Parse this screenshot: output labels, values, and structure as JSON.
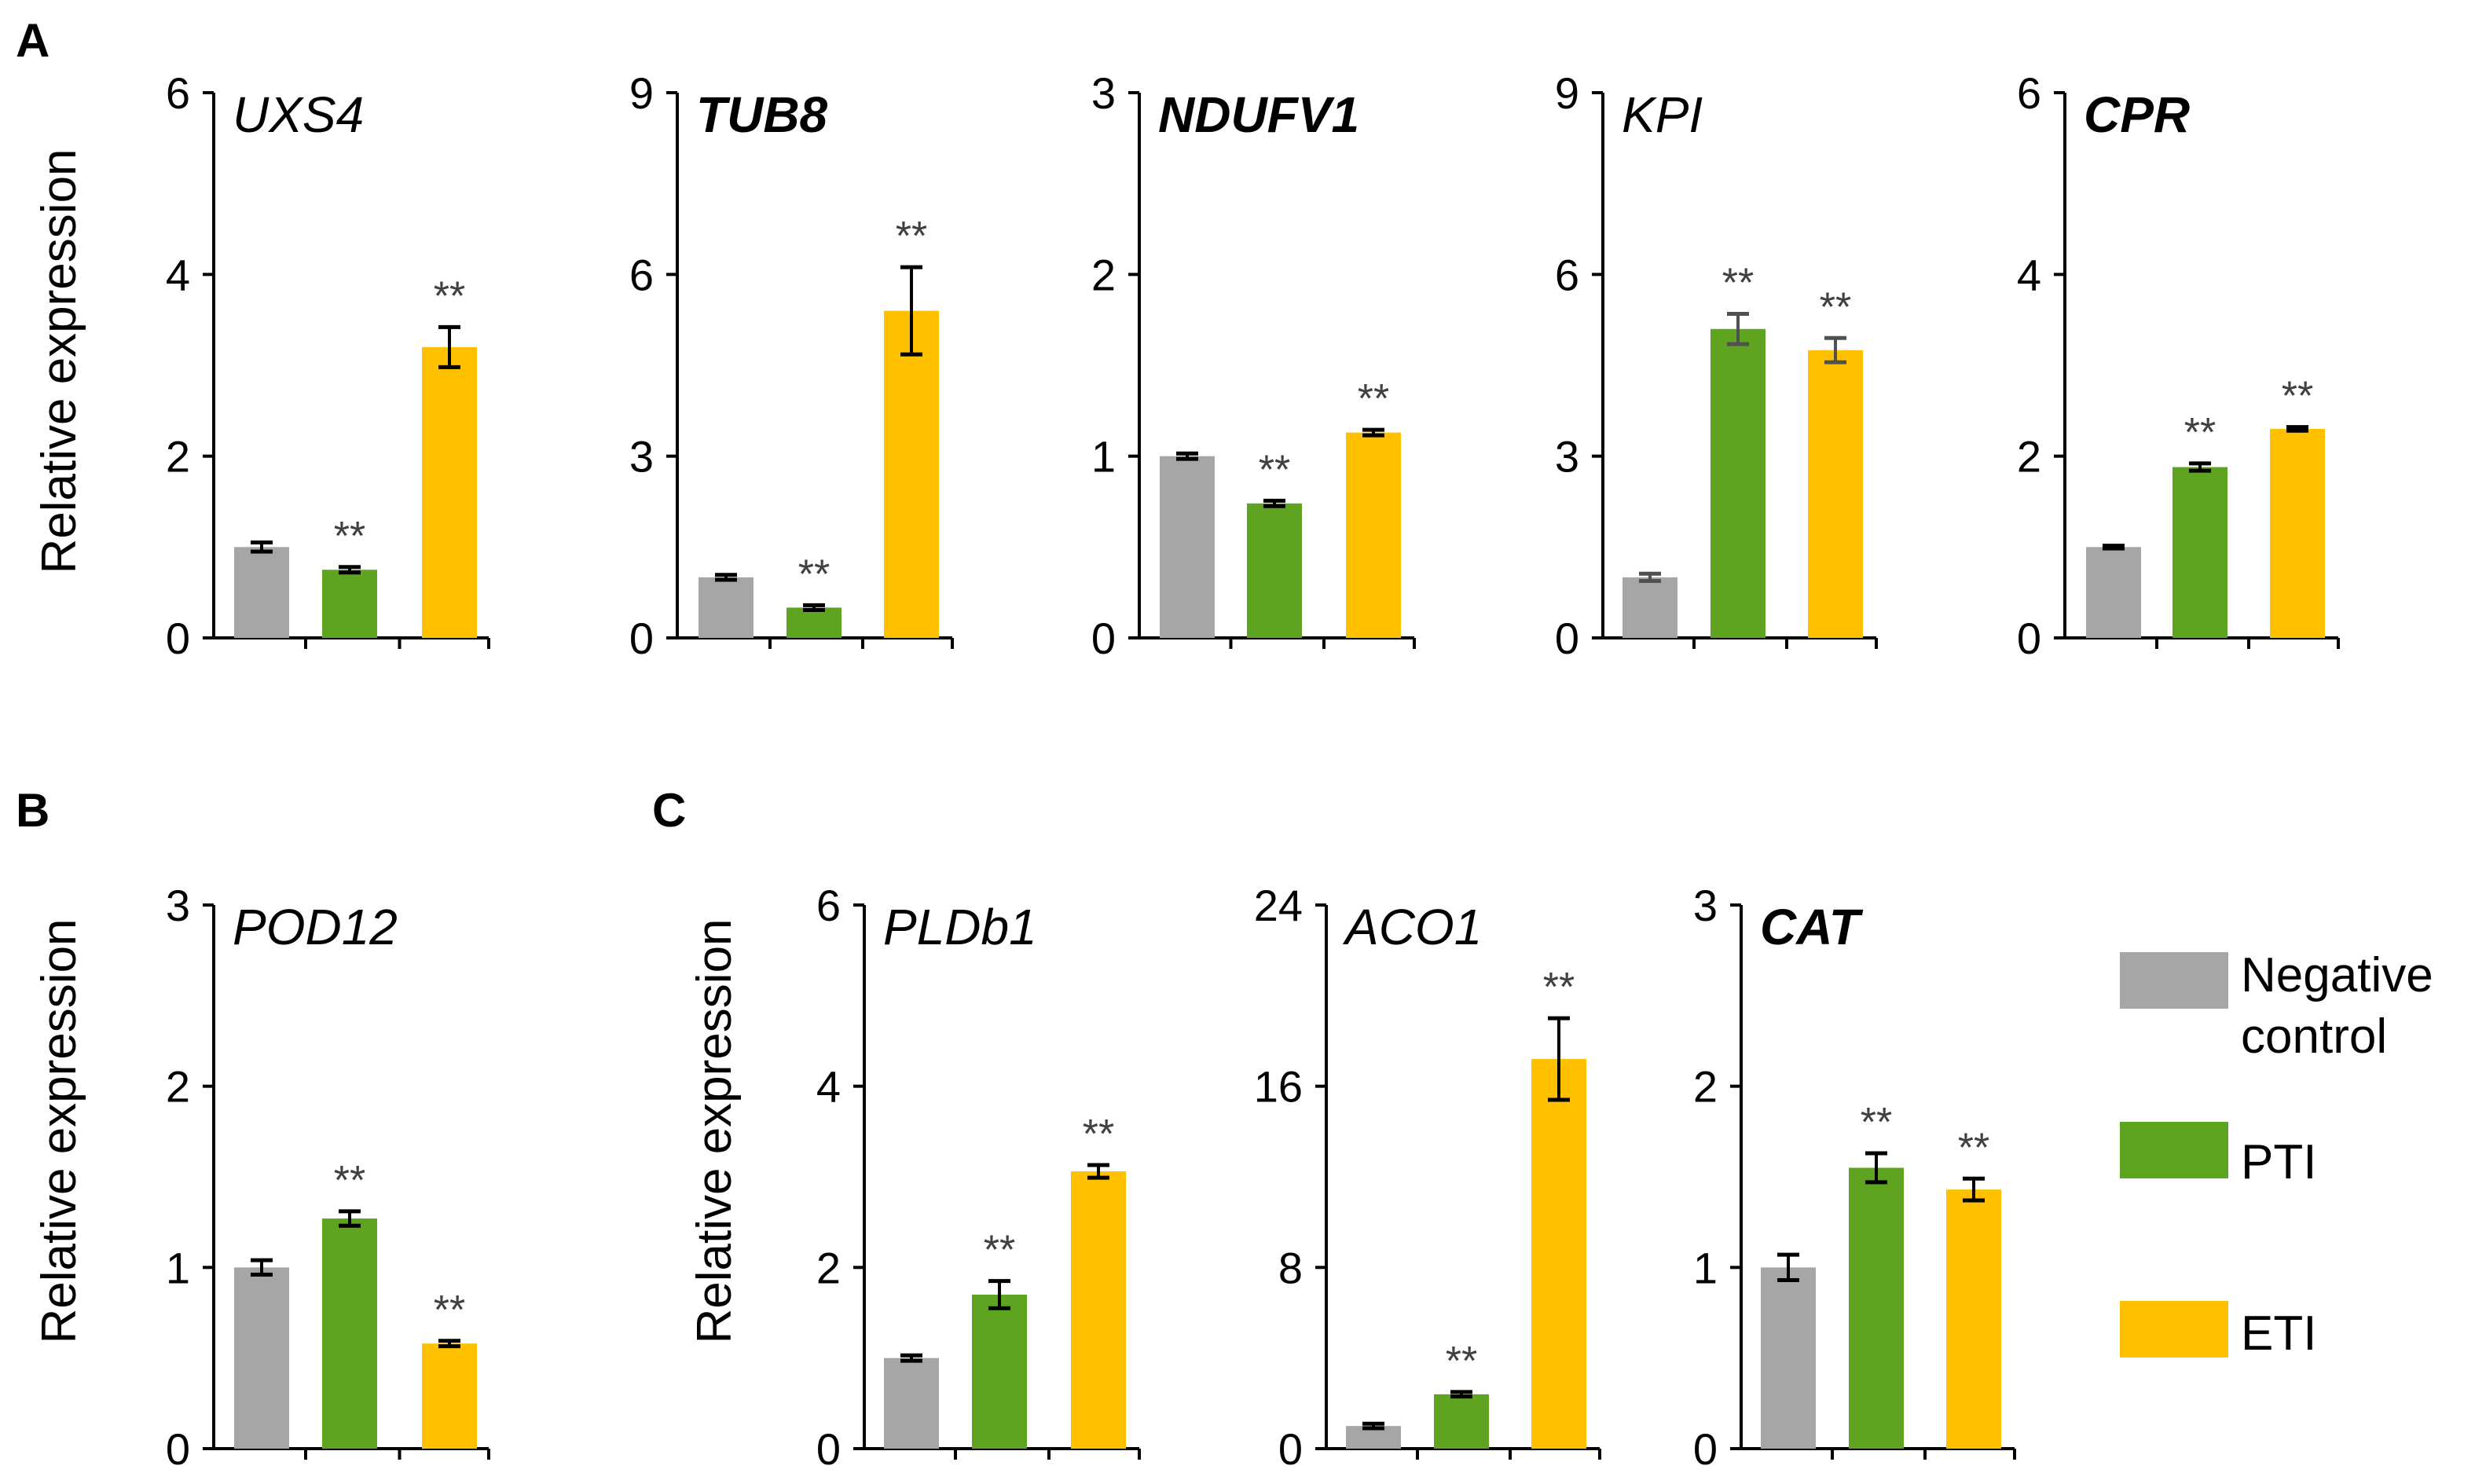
{
  "panel_letters": [
    "A",
    "B",
    "C"
  ],
  "ylabel": "Relative expression",
  "legend": {
    "entries": [
      {
        "label_lines": [
          "Negative",
          "control"
        ],
        "color": "#a6a6a6"
      },
      {
        "label_lines": [
          "PTI"
        ],
        "color": "#5ea421"
      },
      {
        "label_lines": [
          "ETI"
        ],
        "color": "#ffc000"
      }
    ]
  },
  "colors": {
    "negative": "#a6a6a6",
    "pti": "#5ea421",
    "eti": "#ffc000",
    "errorbar": "#000000",
    "errorbar_kpi": "#505050",
    "sig": "#404040"
  },
  "chart_data": [
    {
      "type": "bar",
      "panel": "A",
      "title": "UXS4",
      "title_bold": false,
      "ylabel": "Relative expression",
      "ylim": [
        0,
        6
      ],
      "yticks": [
        0,
        2,
        4,
        6
      ],
      "categories": [
        "Negative control",
        "PTI",
        "ETI"
      ],
      "values": [
        1.0,
        0.75,
        3.2
      ],
      "errors": [
        0.05,
        0.03,
        0.22
      ],
      "significance": [
        "",
        "**",
        "**"
      ]
    },
    {
      "type": "bar",
      "panel": "A",
      "title": "TUB8",
      "title_bold": true,
      "ylabel": "",
      "ylim": [
        0,
        9
      ],
      "yticks": [
        0,
        3,
        6,
        9
      ],
      "categories": [
        "Negative control",
        "PTI",
        "ETI"
      ],
      "values": [
        1.0,
        0.5,
        5.4
      ],
      "errors": [
        0.04,
        0.04,
        0.72
      ],
      "significance": [
        "",
        "**",
        "**"
      ]
    },
    {
      "type": "bar",
      "panel": "A",
      "title": "NDUFV1",
      "title_bold": true,
      "ylabel": "",
      "ylim": [
        0,
        3
      ],
      "yticks": [
        0,
        1,
        2,
        3
      ],
      "categories": [
        "Negative control",
        "PTI",
        "ETI"
      ],
      "values": [
        1.0,
        0.74,
        1.13
      ],
      "errors": [
        0.015,
        0.015,
        0.015
      ],
      "significance": [
        "",
        "**",
        "**"
      ]
    },
    {
      "type": "bar",
      "panel": "A",
      "title": "KPI",
      "title_bold": false,
      "ylabel": "",
      "ylim": [
        0,
        9
      ],
      "yticks": [
        0,
        3,
        6,
        9
      ],
      "categories": [
        "Negative control",
        "PTI",
        "ETI"
      ],
      "values": [
        1.0,
        5.1,
        4.75
      ],
      "errors": [
        0.06,
        0.25,
        0.2
      ],
      "significance": [
        "",
        "**",
        "**"
      ]
    },
    {
      "type": "bar",
      "panel": "A",
      "title": "CPR",
      "title_bold": true,
      "ylabel": "",
      "ylim": [
        0,
        6
      ],
      "yticks": [
        0,
        2,
        4,
        6
      ],
      "categories": [
        "Negative control",
        "PTI",
        "ETI"
      ],
      "values": [
        1.0,
        1.88,
        2.3
      ],
      "errors": [
        0.015,
        0.04,
        0.02
      ],
      "significance": [
        "",
        "**",
        "**"
      ]
    },
    {
      "type": "bar",
      "panel": "B",
      "title": "POD12",
      "title_bold": false,
      "ylabel": "Relative expression",
      "ylim": [
        0,
        3
      ],
      "yticks": [
        0,
        1,
        2,
        3
      ],
      "categories": [
        "Negative control",
        "PTI",
        "ETI"
      ],
      "values": [
        1.0,
        1.27,
        0.58
      ],
      "errors": [
        0.04,
        0.04,
        0.015
      ],
      "significance": [
        "",
        "**",
        "**"
      ]
    },
    {
      "type": "bar",
      "panel": "C",
      "title": "PLDb1",
      "title_bold": false,
      "ylabel": "Relative expression",
      "ylim": [
        0,
        6
      ],
      "yticks": [
        0,
        2,
        4,
        6
      ],
      "categories": [
        "Negative control",
        "PTI",
        "ETI"
      ],
      "values": [
        1.0,
        1.7,
        3.06
      ],
      "errors": [
        0.03,
        0.15,
        0.07
      ],
      "significance": [
        "",
        "**",
        "**"
      ]
    },
    {
      "type": "bar",
      "panel": "C",
      "title": "ACO1",
      "title_bold": false,
      "ylabel": "",
      "ylim": [
        0,
        24
      ],
      "yticks": [
        0,
        8,
        16,
        24
      ],
      "categories": [
        "Negative control",
        "PTI",
        "ETI"
      ],
      "values": [
        1.0,
        2.4,
        17.2
      ],
      "errors": [
        0.1,
        0.1,
        1.8
      ],
      "significance": [
        "",
        "**",
        "**"
      ]
    },
    {
      "type": "bar",
      "panel": "C",
      "title": "CAT",
      "title_bold": true,
      "ylabel": "",
      "ylim": [
        0,
        3
      ],
      "yticks": [
        0,
        1,
        2,
        3
      ],
      "categories": [
        "Negative control",
        "PTI",
        "ETI"
      ],
      "values": [
        1.0,
        1.55,
        1.43
      ],
      "errors": [
        0.07,
        0.08,
        0.06
      ],
      "significance": [
        "",
        "**",
        "**"
      ]
    }
  ]
}
